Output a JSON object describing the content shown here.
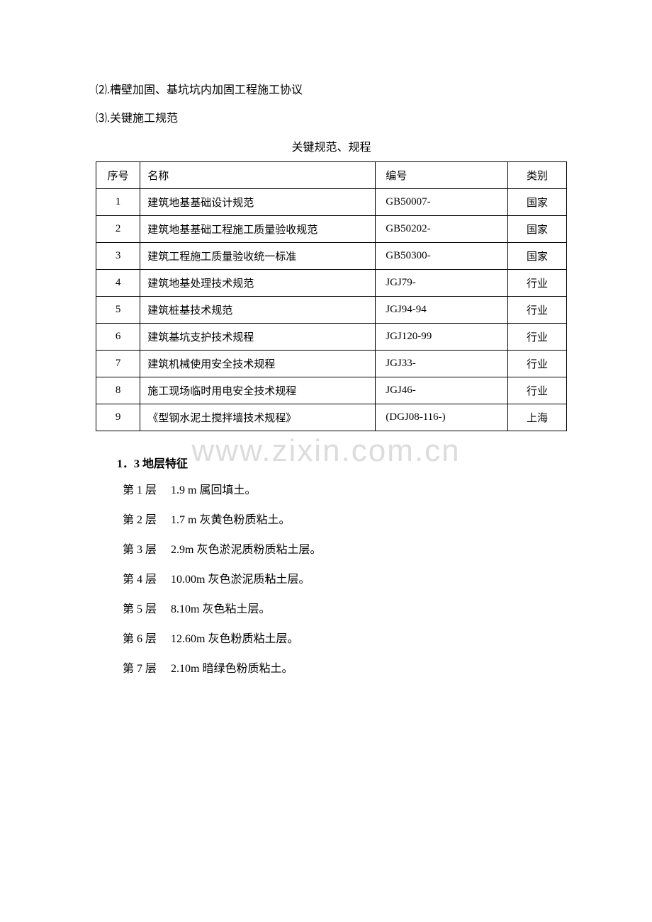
{
  "lines": {
    "line2": "⑵.槽壁加固、基坑坑内加固工程施工协议",
    "line3": "⑶.关键施工规范"
  },
  "tableTitle": "关键规范、规程",
  "table": {
    "headers": {
      "seq": "序号",
      "name": "名称",
      "code": "编号",
      "cat": "类别"
    },
    "rows": [
      {
        "seq": "1",
        "name": "建筑地基基础设计规范",
        "code": "GB50007-",
        "cat": "国家"
      },
      {
        "seq": "2",
        "name": "建筑地基基础工程施工质量验收规范",
        "code": "GB50202-",
        "cat": "国家"
      },
      {
        "seq": "3",
        "name": "建筑工程施工质量验收统一标准",
        "code": "GB50300-",
        "cat": "国家"
      },
      {
        "seq": "4",
        "name": "建筑地基处理技术规范",
        "code": "JGJ79-",
        "cat": "行业"
      },
      {
        "seq": "5",
        "name": "建筑桩基技术规范",
        "code": "JGJ94-94",
        "cat": "行业"
      },
      {
        "seq": "6",
        "name": "建筑基坑支护技术规程",
        "code": "JGJ120-99",
        "cat": "行业"
      },
      {
        "seq": "7",
        "name": "建筑机械使用安全技术规程",
        "code": "JGJ33-",
        "cat": "行业"
      },
      {
        "seq": "8",
        "name": "施工现场临时用电安全技术规程",
        "code": "JGJ46-",
        "cat": "行业"
      },
      {
        "seq": "9",
        "name": "《型钢水泥土搅拌墙技术规程》",
        "code": "(DGJ08-116-)",
        "cat": "上海"
      }
    ]
  },
  "section": {
    "prefix": "1．3",
    "title": "地层特征"
  },
  "layers": [
    "第 1 层  1.9 m 属回填土。",
    "第 2 层  1.7 m 灰黄色粉质粘土。",
    "第 3 层  2.9m 灰色淤泥质粉质粘土层。",
    "第 4 层  10.00m 灰色淤泥质粘土层。",
    "第 5 层  8.10m 灰色粘土层。",
    "第 6 层  12.60m 灰色粉质粘土层。",
    " 第 7 层  2.10m 暗绿色粉质粘土。"
  ],
  "watermark": "www.zixin.com.cn",
  "colors": {
    "text": "#000000",
    "background": "#ffffff",
    "border": "#000000",
    "watermark": "#dcdcdc"
  }
}
